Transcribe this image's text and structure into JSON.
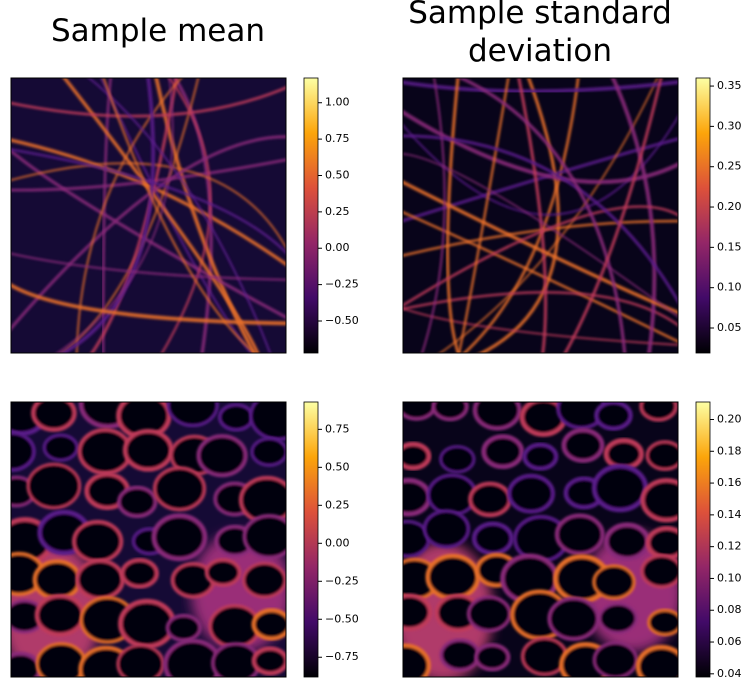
{
  "chart_data": [
    {
      "type": "heatmap",
      "title": "Sample mean",
      "colormap": "inferno",
      "clim": [
        -0.72,
        1.17
      ],
      "cticks": [
        {
          "value": 1.0,
          "label": "1.00"
        },
        0.75,
        {
          "value": 0.5,
          "label": "0.50"
        },
        0.25,
        {
          "value": 0,
          "label": "0.00"
        },
        {
          "value": -0.25,
          "label": "−0.25"
        },
        {
          "value": -0.5,
          "label": "−0.50"
        }
      ]
    },
    {
      "type": "heatmap",
      "title": "Sample standard deviation",
      "colormap": "inferno",
      "clim": [
        0.019,
        0.36
      ],
      "cticks": [
        0.35,
        {
          "value": 0.3,
          "label": "0.30"
        },
        0.25,
        {
          "value": 0.2,
          "label": "0.20"
        },
        0.15,
        {
          "value": 0.1,
          "label": "0.10"
        },
        0.05
      ]
    },
    {
      "type": "heatmap",
      "colormap": "inferno",
      "clim": [
        -0.88,
        0.93
      ],
      "cticks": [
        {
          "value": 0.75,
          "label": "0.75"
        },
        {
          "value": 0.5,
          "label": "0.50"
        },
        0.25,
        {
          "value": 0,
          "label": "0.00"
        },
        {
          "value": -0.25,
          "label": "−0.25"
        },
        {
          "value": -0.5,
          "label": "−0.50"
        },
        {
          "value": -0.75,
          "label": "−0.75"
        }
      ]
    },
    {
      "type": "heatmap",
      "colormap": "inferno",
      "clim": [
        0.038,
        0.211
      ],
      "cticks": [
        {
          "value": 0.2,
          "label": "0.20"
        },
        0.18,
        0.16,
        0.14,
        0.12,
        {
          "value": 0.1,
          "label": "0.10"
        },
        0.08,
        0.06,
        0.04
      ]
    }
  ]
}
